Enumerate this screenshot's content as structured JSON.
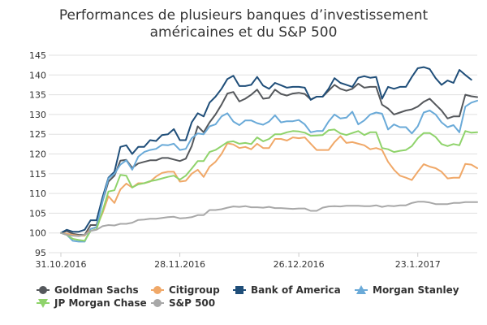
{
  "chart_data": {
    "type": "line",
    "title_lines": [
      "Performances de plusieurs banques d’investissement",
      "américaines et du S&P 500"
    ],
    "xlabel": "",
    "ylabel": "",
    "ylim": [
      95,
      145
    ],
    "yticks": [
      95,
      100,
      105,
      110,
      115,
      120,
      125,
      130,
      135,
      140,
      145
    ],
    "x_start_label": "31.10.2016",
    "x_ticks": [
      {
        "label": "31.10.2016",
        "index": 0
      },
      {
        "label": "28.11.2016",
        "index": 20
      },
      {
        "label": "26.12.2016",
        "index": 40
      },
      {
        "label": "23.1.2017",
        "index": 60
      }
    ],
    "grid": "horizontal",
    "legend_position": "bottom",
    "series": [
      {
        "name": "Goldman Sachs",
        "color": "#55585c",
        "marker": "circle",
        "values": [
          100,
          100.5,
          99.8,
          99.5,
          99.5,
          102,
          102,
          108,
          113,
          114.5,
          118.3,
          118.5,
          116.5,
          117.6,
          118,
          118.4,
          118.4,
          119,
          119,
          118.6,
          118.2,
          118.8,
          122,
          127,
          125.5,
          128,
          130,
          132.5,
          135.3,
          135.7,
          133.3,
          134,
          135,
          136.3,
          134,
          134.2,
          136.3,
          135.2,
          134.8,
          135.3,
          135.5,
          135.2,
          133.8,
          134.5,
          134.5,
          136,
          137.5,
          136.5,
          136,
          136.5,
          137.8,
          136.8,
          137,
          137,
          132.5,
          131.5,
          130,
          130.5,
          131,
          131.3,
          132,
          133.2,
          134,
          132.5,
          131,
          129,
          129.5,
          129.5,
          135,
          134.6,
          134.4
        ]
      },
      {
        "name": "Citigroup",
        "color": "#f0a868",
        "marker": "circle",
        "values": [
          100,
          99.8,
          99.5,
          99.3,
          99.3,
          101,
          101.5,
          105,
          109.3,
          107.6,
          111,
          112.5,
          111.5,
          112.6,
          112.6,
          113,
          114.3,
          115.2,
          115.5,
          115.5,
          113,
          113.2,
          115,
          116,
          114.2,
          116.8,
          118,
          120,
          122.7,
          122.4,
          121.5,
          121.8,
          121.2,
          122.6,
          121.5,
          121.5,
          123.8,
          123.8,
          123.4,
          124.2,
          124,
          124.2,
          122.6,
          121,
          121,
          121,
          123,
          124.5,
          122.8,
          123,
          122.6,
          122.2,
          121.2,
          121.5,
          121,
          118,
          116,
          114.5,
          114,
          113.4,
          115.5,
          117.4,
          116.8,
          116.4,
          115.5,
          113.8,
          114,
          114,
          117.5,
          117.3,
          116.4
        ]
      },
      {
        "name": "Bank of America",
        "color": "#1f4e79",
        "marker": "square",
        "values": [
          100,
          100.8,
          100.3,
          100.3,
          100.8,
          103.2,
          103.2,
          109,
          114,
          115.5,
          121.8,
          122.2,
          120,
          121.8,
          121.8,
          123.5,
          123.3,
          124.8,
          125,
          126.3,
          123.5,
          123.5,
          128,
          130.3,
          129.5,
          133,
          134.5,
          136.5,
          139,
          139.8,
          137.2,
          137.2,
          137.5,
          139.5,
          137.3,
          136.5,
          138,
          137.4,
          136.8,
          137,
          137,
          136.8,
          133.7,
          134.5,
          134.5,
          136.5,
          139.2,
          138,
          137.5,
          137,
          139.3,
          139.7,
          139.3,
          139.5,
          134,
          137,
          136.5,
          137,
          137,
          139.5,
          141.7,
          142,
          141.5,
          139.2,
          137.5,
          138.6,
          138,
          141.3,
          140,
          138.8
        ]
      },
      {
        "name": "Morgan Stanley",
        "color": "#6aaad8",
        "marker": "triangle",
        "values": [
          100,
          99.5,
          98,
          97.8,
          97.8,
          101,
          101.5,
          108,
          113.8,
          115,
          117.3,
          118.4,
          116,
          119.3,
          120.5,
          121,
          121.3,
          122.3,
          122.2,
          122.6,
          121,
          121.3,
          124,
          125.2,
          125,
          127,
          127.5,
          129.5,
          130.3,
          128.2,
          127.3,
          128.5,
          128.5,
          127.8,
          127.4,
          128.2,
          129.8,
          128,
          128.3,
          128.3,
          128.6,
          127.5,
          125.5,
          125.8,
          125.8,
          128.2,
          130,
          129,
          129.2,
          130.7,
          127.5,
          128.5,
          130,
          130.5,
          130.2,
          126.2,
          127.5,
          126.8,
          126.8,
          125.2,
          127,
          130.5,
          131,
          130,
          128,
          126.8,
          127.3,
          125.5,
          132,
          133,
          133.5
        ]
      },
      {
        "name": "JP Morgan Chase",
        "color": "#8fd36b",
        "marker": "triangle-down",
        "values": [
          100,
          99.5,
          98.5,
          98.2,
          98,
          100.5,
          101,
          105.5,
          110.5,
          110.8,
          114.7,
          114.5,
          111.5,
          112.3,
          112.6,
          113.1,
          113.4,
          113.8,
          114.2,
          114.5,
          113.5,
          114.5,
          116.3,
          118.2,
          118.2,
          120.5,
          121,
          122,
          123,
          123.2,
          122.6,
          122.8,
          122.5,
          124.2,
          123.2,
          123.8,
          125,
          125,
          125.5,
          125.8,
          125.7,
          125.4,
          124.6,
          124.7,
          124.8,
          126,
          126.2,
          125.2,
          124.8,
          125.3,
          125.8,
          124.8,
          125.5,
          125.5,
          121.5,
          121.2,
          120.5,
          120.8,
          121,
          122,
          124,
          125.3,
          125.3,
          124.3,
          122.5,
          122,
          122.5,
          122.2,
          125.8,
          125.4,
          125.5
        ]
      },
      {
        "name": "S&P 500",
        "color": "#a8a8a8",
        "marker": "circle",
        "values": [
          100,
          99.5,
          99.3,
          99.2,
          99.5,
          100.5,
          100.8,
          101.7,
          102,
          101.9,
          102.3,
          102.3,
          102.6,
          103.3,
          103.4,
          103.6,
          103.6,
          103.8,
          104,
          104.1,
          103.7,
          103.8,
          104,
          104.5,
          104.5,
          105.8,
          105.8,
          106,
          106.4,
          106.7,
          106.6,
          106.8,
          106.5,
          106.5,
          106.4,
          106.6,
          106.3,
          106.3,
          106.2,
          106.1,
          106.2,
          106.2,
          105.6,
          105.6,
          106.4,
          106.7,
          106.8,
          106.7,
          106.9,
          106.9,
          106.9,
          106.8,
          106.8,
          107,
          106.6,
          106.9,
          106.8,
          107,
          107,
          107.6,
          107.9,
          107.9,
          107.7,
          107.3,
          107.3,
          107.3,
          107.6,
          107.6,
          107.8,
          107.8,
          107.8
        ]
      }
    ]
  }
}
